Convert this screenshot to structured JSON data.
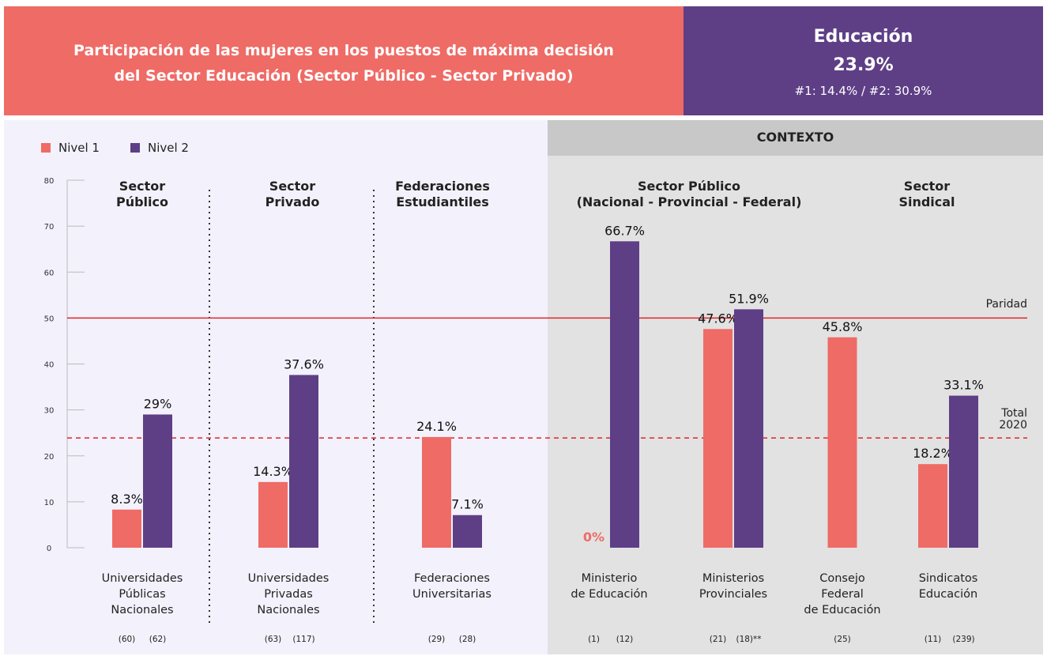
{
  "header": {
    "title": "Participación de las mujeres en los puestos de máxima decisión\ndel Sector Educación (Sector Público - Sector Privado)",
    "summary_title": "Educación",
    "summary_value": "23.9%",
    "summary_detail": "#1: 14.4% / #2: 30.9%"
  },
  "chart_data": {
    "type": "bar",
    "context_label": "CONTEXTO",
    "groups": [
      "Sector\nPúblico",
      "Sector\nPrivado",
      "Federaciones\nEstudiantiles",
      "Sector Público\n(Nacional - Provincial - Federal)",
      "Sector\nSindical"
    ],
    "categories": [
      "Universidades\nPúblicas\nNacionales",
      "Universidades\nPrivadas\nNacionales",
      "Federaciones\nUniversitarias",
      "Ministerio\nde Educación",
      "Ministerios\nProvinciales",
      "Consejo\nFederal\nde Educación",
      "Sindicatos\nEducación"
    ],
    "series": [
      {
        "name": "Nivel 1",
        "color": "#ef6b66",
        "values": [
          8.3,
          14.3,
          24.1,
          0,
          47.6,
          45.8,
          18.2
        ],
        "value_labels": [
          "8.3%",
          "14.3%",
          "24.1%",
          "0%",
          "47.6%",
          "45.8%",
          "18.2%"
        ],
        "counts": [
          "(60)",
          "(63)",
          "(29)",
          "(1)",
          "(21)",
          "(25)",
          "(11)"
        ]
      },
      {
        "name": "Nivel 2",
        "color": "#5e3f86",
        "values": [
          29,
          37.6,
          7.1,
          66.7,
          51.9,
          null,
          33.1
        ],
        "value_labels": [
          "29%",
          "37.6%",
          "7.1%",
          "66.7%",
          "51.9%",
          null,
          "33.1%"
        ],
        "counts": [
          "(62)",
          "(117)",
          "(28)",
          "(12)",
          "(18)**",
          null,
          "(239)"
        ]
      }
    ],
    "reference_lines": [
      {
        "label": "Paridad",
        "value": 50,
        "color": "#e0262a",
        "style": "solid"
      },
      {
        "label": "Total\n2020",
        "value": 23.9,
        "color": "#e0262a",
        "style": "dashed"
      }
    ],
    "ylim": [
      0,
      80
    ],
    "yticks": [
      0,
      10,
      20,
      30,
      40,
      50,
      60,
      70,
      80
    ]
  }
}
